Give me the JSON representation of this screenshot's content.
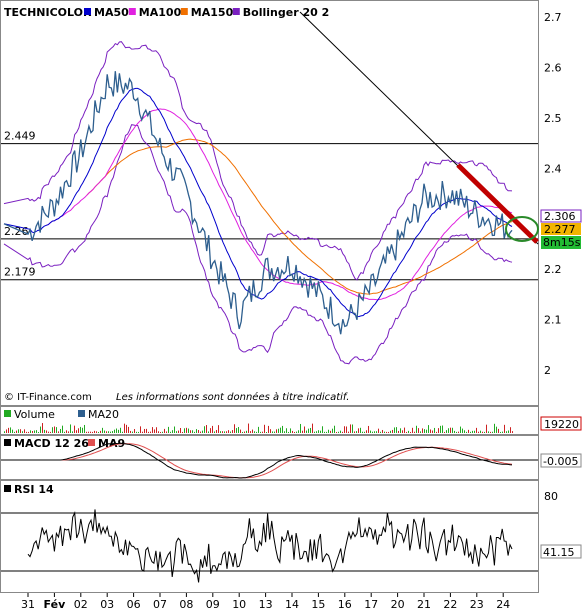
{
  "chart_data": {
    "type": "line",
    "title": "TECHNICOLOR",
    "legend": [
      {
        "name": "MA50",
        "color": "#0000cc"
      },
      {
        "name": "MA100",
        "color": "#e020e0"
      },
      {
        "name": "MA150",
        "color": "#f07000"
      },
      {
        "name": "Bollinger 20 2",
        "color": "#7a20c0"
      }
    ],
    "price_axis": {
      "ticks": [
        "2.7",
        "2.6",
        "2.5",
        "2.4",
        "2.3",
        "2.2",
        "2.1",
        "2"
      ],
      "ylim": [
        1.98,
        2.72
      ]
    },
    "levels": [
      {
        "label": "2.449",
        "value": 2.449
      },
      {
        "label": "2.26",
        "value": 2.26
      },
      {
        "label": "2.179",
        "value": 2.179
      }
    ],
    "price_tags": {
      "bollinger_upper": "2.306",
      "last_price": "2.277",
      "ma150_level": "2.26",
      "countdown": "8m15s"
    },
    "x_ticks": [
      "31",
      "Fév",
      "02",
      "03",
      "06",
      "07",
      "08",
      "09",
      "10",
      "13",
      "14",
      "15",
      "16",
      "17",
      "20",
      "21",
      "22",
      "23",
      "24"
    ],
    "price_series": [
      {
        "x": "31",
        "y": 2.27
      },
      {
        "x": "Fév",
        "y": 2.33
      },
      {
        "x": "02",
        "y": 2.43
      },
      {
        "x": "03",
        "y": 2.57
      },
      {
        "x": "06",
        "y": 2.56
      },
      {
        "x": "07",
        "y": 2.44
      },
      {
        "x": "08",
        "y": 2.35
      },
      {
        "x": "09",
        "y": 2.22
      },
      {
        "x": "10",
        "y": 2.11
      },
      {
        "x": "13",
        "y": 2.2
      },
      {
        "x": "14",
        "y": 2.21
      },
      {
        "x": "15",
        "y": 2.15
      },
      {
        "x": "16",
        "y": 2.09
      },
      {
        "x": "17",
        "y": 2.16
      },
      {
        "x": "20",
        "y": 2.25
      },
      {
        "x": "21",
        "y": 2.34
      },
      {
        "x": "22",
        "y": 2.35
      },
      {
        "x": "23",
        "y": 2.31
      },
      {
        "x": "23.5",
        "y": 2.277
      }
    ],
    "volume": {
      "legend": [
        "Volume",
        "MA20"
      ],
      "last_value": "19220"
    },
    "macd": {
      "legend": [
        "MACD 12 26",
        "MA9"
      ],
      "last_value": "-0.005"
    },
    "rsi": {
      "legend": [
        "RSI 14"
      ],
      "level_label": "80",
      "last_value": "41.15"
    }
  },
  "copyright": "© IT-Finance.com",
  "disclaimer": "Les informations sont données à titre indicatif."
}
